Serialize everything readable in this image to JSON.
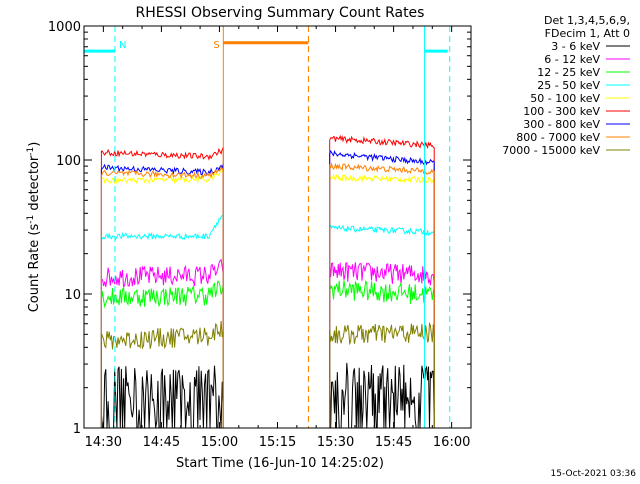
{
  "chart_data": {
    "type": "line",
    "title": "RHESSI Observing Summary Count Rates",
    "xlabel": "Start Time (16-Jun-10 14:25:02)",
    "ylabel": "Count Rate (s⁻¹ detector⁻¹)",
    "ylabel_parts": {
      "base": "Count Rate (s",
      "sup1": "-1",
      "mid": " detector",
      "sup2": "-1",
      "end": ")"
    },
    "yscale": "log",
    "ylim": [
      1,
      1000
    ],
    "xlim_minutes": [
      -5,
      95
    ],
    "x_ticks": [
      {
        "label": "14:30",
        "minutes": 0
      },
      {
        "label": "14:45",
        "minutes": 15
      },
      {
        "label": "15:00",
        "minutes": 30
      },
      {
        "label": "15:15",
        "minutes": 45
      },
      {
        "label": "15:30",
        "minutes": 60
      },
      {
        "label": "15:45",
        "minutes": 75
      },
      {
        "label": "16:00",
        "minutes": 90
      }
    ],
    "y_ticks": [
      {
        "label": "1",
        "value": 1
      },
      {
        "label": "10",
        "value": 10
      },
      {
        "label": "100",
        "value": 100
      },
      {
        "label": "1000",
        "value": 1000
      }
    ],
    "legend_header": [
      "Det 1,3,4,5,6,9,",
      "FDecim 1, Att 0"
    ],
    "series": [
      {
        "name": "3 - 6 keV",
        "color": "#000000",
        "seg1": [
          2.0,
          2.0
        ],
        "seg2": [
          2.2,
          2.0
        ]
      },
      {
        "name": "6 - 12 keV",
        "color": "#ff00ff",
        "seg1": [
          13.5,
          14.0
        ],
        "seg2": [
          15.0,
          14.0
        ]
      },
      {
        "name": "12 - 25 keV",
        "color": "#00ff00",
        "seg1": [
          9.5,
          10.0
        ],
        "seg2": [
          11.0,
          10.0
        ]
      },
      {
        "name": "25 - 50 keV",
        "color": "#00ffff",
        "seg1": [
          27.0,
          27.0
        ],
        "seg2": [
          31.0,
          29.0
        ]
      },
      {
        "name": "50 - 100 keV",
        "color": "#ffff00",
        "seg1": [
          70.0,
          72.0
        ],
        "seg2": [
          74.0,
          71.0
        ]
      },
      {
        "name": "100 - 300 keV",
        "color": "#ff0000",
        "seg1": [
          114.0,
          105.0
        ],
        "seg2": [
          145.0,
          128.0
        ]
      },
      {
        "name": "300 - 800 keV",
        "color": "#0000ff",
        "seg1": [
          88.0,
          80.0
        ],
        "seg2": [
          112.0,
          95.0
        ]
      },
      {
        "name": "800 - 7000 keV",
        "color": "#ff8000",
        "seg1": [
          80.0,
          76.0
        ],
        "seg2": [
          90.0,
          82.0
        ]
      },
      {
        "name": "7000 - 15000 keV",
        "color": "#808000",
        "seg1": [
          4.5,
          5.0
        ],
        "seg2": [
          5.0,
          5.2
        ]
      }
    ],
    "data_segments_minutes": [
      [
        -0.5,
        31
      ],
      [
        58.5,
        85.5
      ]
    ],
    "annotations": [
      {
        "label": "N",
        "color": "#00ffff",
        "minutes": 3
      },
      {
        "label": "S",
        "color": "#ff8000",
        "minutes": 31
      }
    ],
    "night_bars": [
      {
        "color": "#00ffff",
        "from": -5,
        "to": 3,
        "y": 650
      },
      {
        "color": "#ff8000",
        "from": 31,
        "to": 53,
        "y": 750
      },
      {
        "color": "#00ffff",
        "from": 83,
        "to": 89,
        "y": 650
      }
    ],
    "vertical_markers": [
      {
        "color": "#00ffff",
        "minutes": 3,
        "style": "dashed"
      },
      {
        "color": "#ff8000",
        "minutes": 31,
        "style": "solid"
      },
      {
        "color": "#ff8000",
        "minutes": 53,
        "style": "dashed"
      },
      {
        "color": "#00ffff",
        "minutes": 83,
        "style": "solid"
      },
      {
        "color": "#00ffff",
        "minutes": 89.5,
        "style": "dashed"
      }
    ],
    "grid": false,
    "legend_position": "top-right"
  },
  "footer_timestamp": "15-Oct-2021 03:36"
}
